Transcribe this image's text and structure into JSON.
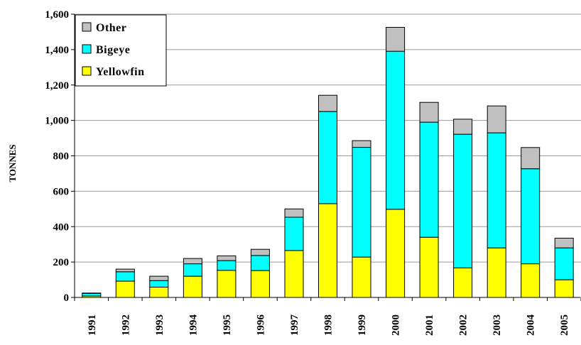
{
  "chart_data": {
    "type": "bar",
    "stacked": true,
    "categories": [
      "1991",
      "1992",
      "1993",
      "1994",
      "1995",
      "1996",
      "1997",
      "1998",
      "1999",
      "2000",
      "2001",
      "2002",
      "2003",
      "2004",
      "2005"
    ],
    "series": [
      {
        "name": "Yellowfin",
        "color": "#FFFF00",
        "values": [
          8,
          92,
          58,
          120,
          153,
          152,
          265,
          530,
          228,
          498,
          340,
          167,
          280,
          190,
          100
        ]
      },
      {
        "name": "Bigeye",
        "color": "#00FFFF",
        "values": [
          15,
          53,
          37,
          70,
          55,
          85,
          188,
          520,
          620,
          893,
          650,
          755,
          650,
          537,
          180
        ]
      },
      {
        "name": "Other",
        "color": "#C0C0C0",
        "values": [
          2,
          15,
          25,
          30,
          27,
          35,
          47,
          92,
          38,
          135,
          112,
          85,
          152,
          120,
          55
        ]
      }
    ],
    "legend_order": [
      "Other",
      "Bigeye",
      "Yellowfin"
    ],
    "ylabel": "TONNES",
    "xlabel": "",
    "ylim": [
      0,
      1600
    ],
    "yticks": [
      0,
      200,
      400,
      600,
      800,
      1000,
      1200,
      1400,
      1600
    ],
    "ytick_labels": [
      "0",
      "200",
      "400",
      "600",
      "800",
      "1,000",
      "1,200",
      "1,400",
      "1,600"
    ],
    "grid": true,
    "legend_position": "top-left"
  }
}
